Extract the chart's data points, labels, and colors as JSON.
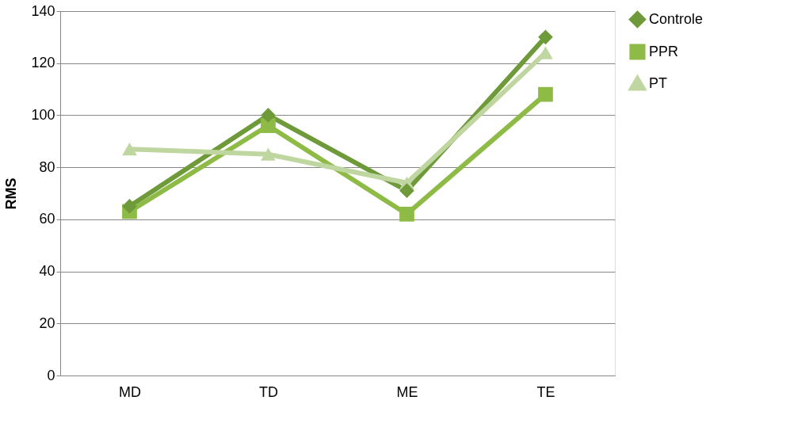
{
  "chart_data": {
    "type": "line",
    "ylabel": "RMS",
    "categories": [
      "MD",
      "TD",
      "ME",
      "TE"
    ],
    "series": [
      {
        "name": "Controle",
        "color": "#6e9a3a",
        "marker": "diamond",
        "values": [
          65,
          100,
          71,
          130
        ]
      },
      {
        "name": "PPR",
        "color": "#8dbb45",
        "marker": "square",
        "values": [
          63,
          96,
          62,
          108
        ]
      },
      {
        "name": "PT",
        "color": "#c0d6a0",
        "marker": "triangle",
        "values": [
          87,
          85,
          74,
          124
        ]
      }
    ],
    "ylim": [
      0,
      140
    ],
    "yticks": [
      0,
      20,
      40,
      60,
      80,
      100,
      120,
      140
    ],
    "grid": "y",
    "legend": "right"
  }
}
